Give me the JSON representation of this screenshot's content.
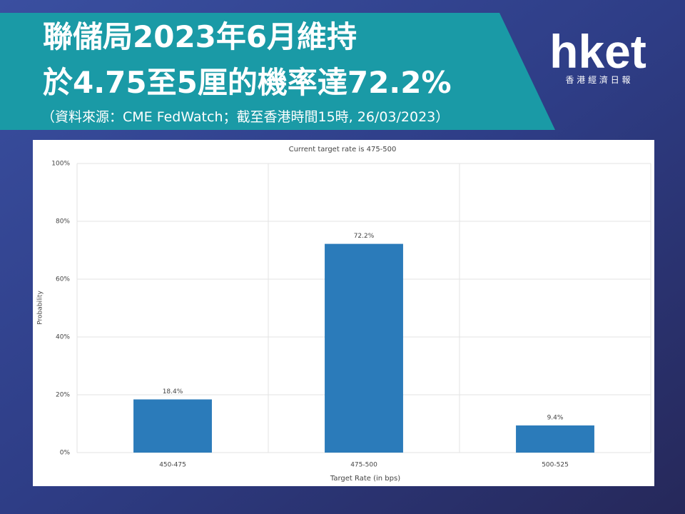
{
  "header": {
    "title_lines": [
      "聯儲局2023年6月維持",
      "於4.75至5厘的機率達72.2%"
    ],
    "source": "（資料來源：CME FedWatch；截至香港時間15時, 26/03/2023）",
    "logo": "hket",
    "logo_subtitle": "香 港 經 濟 日 報"
  },
  "chart_data": {
    "type": "bar",
    "title": "Current target rate is 475-500",
    "categories": [
      "450-475",
      "475-500",
      "500-525"
    ],
    "values": [
      18.4,
      72.2,
      9.4
    ],
    "value_labels": [
      "18.4%",
      "72.2%",
      "9.4%"
    ],
    "color": "#2b7bba",
    "ylim": [
      0,
      100
    ],
    "yticks": [
      {
        "value": 0,
        "label": "0%"
      },
      {
        "value": 20,
        "label": "20%"
      },
      {
        "value": 40,
        "label": "40%"
      },
      {
        "value": 60,
        "label": "60%"
      },
      {
        "value": 80,
        "label": "80%"
      },
      {
        "value": 100,
        "label": "100%"
      }
    ],
    "xlabel": "Target Rate (in bps)",
    "ylabel": "Probability",
    "grid": true
  }
}
